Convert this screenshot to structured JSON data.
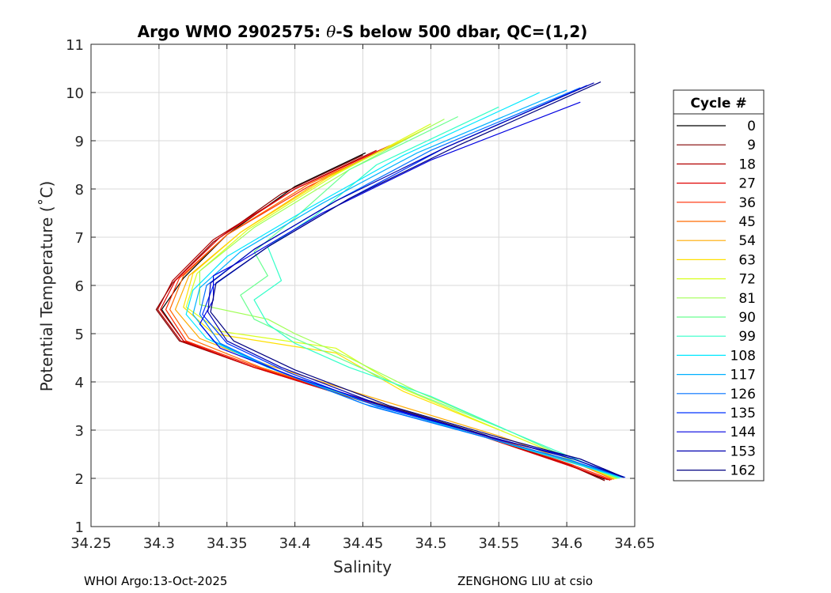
{
  "chart_data": {
    "type": "line",
    "title_prefix": "Argo WMO 2902575: ",
    "title_symbol": "θ",
    "title_suffix": "-S below 500 dbar,  QC=(1,2)",
    "xlabel": "Salinity",
    "ylabel": "Potential Temperature (˚C)",
    "xlim": [
      34.25,
      34.65
    ],
    "ylim": [
      1,
      11
    ],
    "xticks": [
      "34.25",
      "34.3",
      "34.35",
      "34.4",
      "34.45",
      "34.5",
      "34.55",
      "34.6",
      "34.65"
    ],
    "yticks": [
      "1",
      "2",
      "3",
      "4",
      "5",
      "6",
      "7",
      "8",
      "9",
      "10",
      "11"
    ],
    "grid": true,
    "legend": {
      "title": "Cycle #",
      "position": "right-outside",
      "entries": [
        "0",
        "9",
        "18",
        "27",
        "36",
        "45",
        "54",
        "63",
        "72",
        "81",
        "90",
        "99",
        "108",
        "117",
        "126",
        "135",
        "144",
        "153",
        "162"
      ],
      "colors": [
        "#000000",
        "#800000",
        "#b20000",
        "#e00000",
        "#ff2a00",
        "#ff6a00",
        "#ffaa00",
        "#ffe000",
        "#d8ff20",
        "#a0ff55",
        "#6aff90",
        "#33ffc8",
        "#00e8ff",
        "#00b0ff",
        "#0070ff",
        "#0033ff",
        "#0000e0",
        "#0000b0",
        "#000080"
      ]
    },
    "series": [
      {
        "name": "0",
        "salinity": [
          34.452,
          34.4,
          34.35,
          34.318,
          34.302,
          34.318,
          34.37,
          34.45,
          34.54,
          34.6,
          34.628
        ],
        "theta": [
          8.75,
          8.05,
          7.05,
          6.15,
          5.5,
          4.85,
          4.3,
          3.65,
          2.9,
          2.3,
          1.98
        ]
      },
      {
        "name": "9",
        "salinity": [
          34.45,
          34.39,
          34.34,
          34.31,
          34.298,
          34.315,
          34.37,
          34.45,
          34.54,
          34.6,
          34.628
        ],
        "theta": [
          8.7,
          7.9,
          6.9,
          6.05,
          5.5,
          4.85,
          4.3,
          3.6,
          2.85,
          2.3,
          1.95
        ]
      },
      {
        "name": "18",
        "salinity": [
          34.46,
          34.4,
          34.34,
          34.31,
          34.299,
          34.316,
          34.37,
          34.45,
          34.54,
          34.6,
          34.63
        ],
        "theta": [
          8.8,
          8.0,
          6.95,
          6.1,
          5.5,
          4.85,
          4.3,
          3.62,
          2.88,
          2.3,
          1.97
        ]
      },
      {
        "name": "27",
        "salinity": [
          34.47,
          34.4,
          34.345,
          34.312,
          34.301,
          34.318,
          34.37,
          34.45,
          34.54,
          34.6,
          34.632
        ],
        "theta": [
          8.9,
          8.0,
          7.0,
          6.1,
          5.5,
          4.85,
          4.3,
          3.6,
          2.85,
          2.28,
          1.96
        ]
      },
      {
        "name": "36",
        "salinity": [
          34.47,
          34.41,
          34.35,
          34.315,
          34.305,
          34.32,
          34.375,
          34.455,
          34.545,
          34.605,
          34.633
        ],
        "theta": [
          8.9,
          8.05,
          7.05,
          6.15,
          5.5,
          4.85,
          4.28,
          3.58,
          2.84,
          2.27,
          1.97
        ]
      },
      {
        "name": "45",
        "salinity": [
          34.48,
          34.41,
          34.35,
          34.318,
          34.308,
          34.322,
          34.375,
          34.455,
          34.545,
          34.61,
          34.634
        ],
        "theta": [
          9.0,
          8.1,
          7.05,
          6.2,
          5.5,
          4.9,
          4.3,
          3.6,
          2.85,
          2.28,
          1.98
        ]
      },
      {
        "name": "54",
        "salinity": [
          34.49,
          34.42,
          34.36,
          34.322,
          34.312,
          34.33,
          34.38,
          34.46,
          34.55,
          34.61,
          34.635
        ],
        "theta": [
          9.15,
          8.2,
          7.1,
          6.2,
          5.5,
          4.9,
          4.35,
          3.65,
          2.88,
          2.28,
          1.98
        ]
      },
      {
        "name": "63",
        "salinity": [
          34.5,
          34.425,
          34.36,
          34.325,
          34.318,
          34.34,
          34.43,
          34.48,
          34.555,
          34.61,
          34.636
        ],
        "theta": [
          9.3,
          8.25,
          7.1,
          6.25,
          5.55,
          5.0,
          4.6,
          3.8,
          2.95,
          2.3,
          1.99
        ]
      },
      {
        "name": "72",
        "salinity": [
          34.5,
          34.43,
          34.365,
          34.328,
          34.32,
          34.345,
          34.43,
          34.48,
          34.555,
          34.61,
          34.637
        ],
        "theta": [
          9.35,
          8.3,
          7.15,
          6.25,
          5.55,
          5.05,
          4.7,
          3.85,
          2.95,
          2.3,
          1.99
        ]
      },
      {
        "name": "81",
        "salinity": [
          34.51,
          34.44,
          34.37,
          34.33,
          34.33,
          34.38,
          34.4,
          34.44,
          34.49,
          34.56,
          34.61,
          34.637
        ],
        "theta": [
          9.45,
          8.4,
          7.2,
          6.3,
          5.6,
          5.3,
          5.0,
          4.5,
          3.8,
          2.95,
          2.3,
          2.0
        ]
      },
      {
        "name": "90",
        "salinity": [
          34.52,
          34.44,
          34.4,
          34.37,
          34.38,
          34.36,
          34.37,
          34.4,
          34.44,
          34.49,
          34.56,
          34.61,
          34.638
        ],
        "theta": [
          9.5,
          8.4,
          7.4,
          6.7,
          6.2,
          5.8,
          5.3,
          4.9,
          4.4,
          3.75,
          2.95,
          2.3,
          2.0
        ]
      },
      {
        "name": "99",
        "salinity": [
          34.55,
          34.46,
          34.415,
          34.38,
          34.39,
          34.37,
          34.38,
          34.4,
          34.44,
          34.5,
          34.56,
          34.615,
          34.639
        ],
        "theta": [
          9.7,
          8.5,
          7.45,
          6.8,
          6.1,
          5.7,
          5.2,
          4.8,
          4.3,
          3.7,
          2.95,
          2.3,
          2.0
        ]
      },
      {
        "name": "108",
        "salinity": [
          34.58,
          34.48,
          34.41,
          34.35,
          34.325,
          34.32,
          34.335,
          34.38,
          34.45,
          34.54,
          34.6,
          34.64
        ],
        "theta": [
          10.0,
          8.7,
          7.6,
          6.6,
          5.9,
          5.4,
          4.9,
          4.3,
          3.6,
          2.85,
          2.35,
          2.02
        ]
      },
      {
        "name": "117",
        "salinity": [
          34.6,
          34.49,
          34.42,
          34.36,
          34.33,
          34.325,
          34.34,
          34.385,
          34.45,
          34.54,
          34.6,
          34.641
        ],
        "theta": [
          10.05,
          8.75,
          7.7,
          6.7,
          5.95,
          5.4,
          4.85,
          4.25,
          3.55,
          2.85,
          2.38,
          2.02
        ]
      },
      {
        "name": "126",
        "salinity": [
          34.61,
          34.5,
          34.43,
          34.37,
          34.335,
          34.33,
          34.345,
          34.39,
          34.455,
          34.54,
          34.6,
          34.642
        ],
        "theta": [
          10.1,
          8.8,
          7.75,
          6.75,
          6.0,
          5.4,
          4.8,
          4.2,
          3.5,
          2.85,
          2.4,
          2.02
        ]
      },
      {
        "name": "135",
        "salinity": [
          34.615,
          34.51,
          34.44,
          34.38,
          34.34,
          34.332,
          34.35,
          34.395,
          34.46,
          34.545,
          34.605,
          34.643
        ],
        "theta": [
          10.15,
          8.85,
          7.8,
          6.8,
          6.0,
          5.4,
          4.8,
          4.2,
          3.5,
          2.85,
          2.4,
          2.02
        ]
      },
      {
        "name": "144",
        "salinity": [
          34.61,
          34.5,
          34.42,
          34.36,
          34.34,
          34.34,
          34.33,
          34.345,
          34.4,
          34.47,
          34.55,
          34.61,
          34.642
        ],
        "theta": [
          9.8,
          8.6,
          7.5,
          6.5,
          6.2,
          5.7,
          5.2,
          4.7,
          4.1,
          3.45,
          2.8,
          2.4,
          2.02
        ]
      },
      {
        "name": "153",
        "salinity": [
          34.62,
          34.51,
          34.43,
          34.37,
          34.338,
          34.336,
          34.35,
          34.39,
          34.46,
          34.545,
          34.605,
          34.641
        ],
        "theta": [
          10.2,
          8.85,
          7.75,
          6.75,
          6.05,
          5.45,
          4.85,
          4.3,
          3.55,
          2.85,
          2.4,
          2.03
        ]
      },
      {
        "name": "162",
        "salinity": [
          34.625,
          34.52,
          34.44,
          34.38,
          34.342,
          34.338,
          34.355,
          34.4,
          34.47,
          34.55,
          34.61,
          34.642
        ],
        "theta": [
          10.22,
          8.9,
          7.8,
          6.8,
          6.05,
          5.45,
          4.85,
          4.25,
          3.5,
          2.85,
          2.4,
          2.02
        ]
      }
    ]
  },
  "footer": {
    "left": "WHOI Argo:13-Oct-2025",
    "right": "ZENGHONG LIU at csio"
  }
}
